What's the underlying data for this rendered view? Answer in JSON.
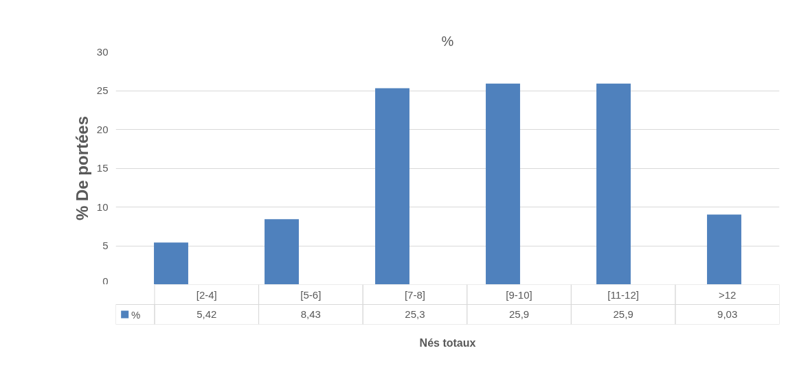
{
  "chart_data": {
    "type": "bar",
    "title": "%",
    "xlabel": "Nés totaux",
    "ylabel": "% De portées",
    "categories": [
      "[2-4]",
      "[5-6]",
      "[7-8]",
      "[9-10]",
      "[11-12]",
      ">12"
    ],
    "series": [
      {
        "name": "%",
        "color": "#4f81bd",
        "values": [
          5.42,
          8.43,
          25.3,
          25.9,
          25.9,
          9.03
        ],
        "value_labels": [
          "5,42",
          "8,43",
          "25,3",
          "25,9",
          "25,9",
          "9,03"
        ]
      }
    ],
    "ylim": [
      0,
      30
    ],
    "yticks": [
      0,
      5,
      10,
      15,
      20,
      25,
      30
    ],
    "grid": "y",
    "legend": "bottom"
  }
}
